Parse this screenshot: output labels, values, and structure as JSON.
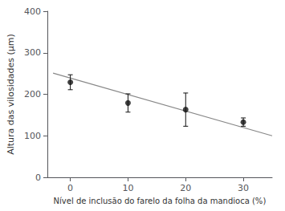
{
  "chart_data": {
    "type": "scatter",
    "xlabel": "Nível de inclusão do farelo da folha da mandioca (%)",
    "ylabel": "Altura das vilosidades (µm)",
    "xlim": [
      -4,
      35
    ],
    "ylim": [
      0,
      400
    ],
    "xticks": [
      0,
      10,
      20,
      30
    ],
    "yticks": [
      0,
      100,
      200,
      300,
      400
    ],
    "grid": false,
    "series": [
      {
        "type": "line",
        "x": [
          -3,
          35
        ],
        "values": [
          251,
          100
        ],
        "color": "#888888",
        "line_style": "solid"
      },
      {
        "type": "scatter",
        "x": [
          0,
          10,
          20,
          30
        ],
        "values": [
          229,
          179,
          163,
          133
        ],
        "yerr": [
          18,
          22,
          40,
          10
        ],
        "color": "#111111",
        "marker": "circle"
      }
    ]
  }
}
